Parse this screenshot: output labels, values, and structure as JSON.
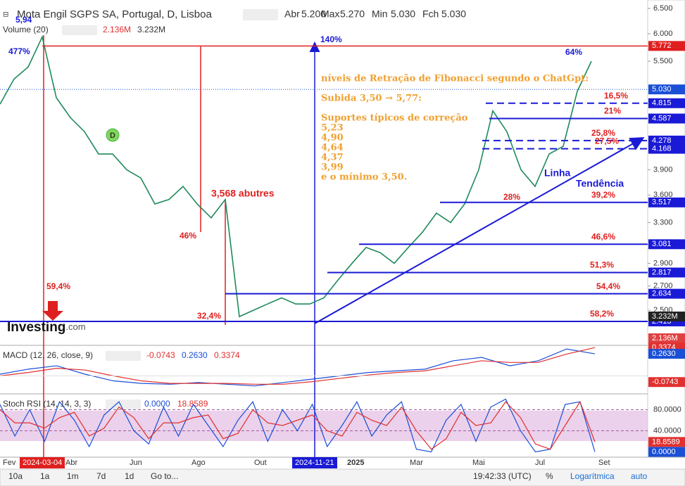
{
  "header": {
    "title": "Mota Engil SGPS SA, Portugal, D, Lisboa",
    "open_label": "Abr",
    "open": "5.200",
    "high_label": "Max",
    "high": "5.270",
    "low_label": "Min",
    "low": "5.030",
    "close_label": "Fch",
    "close": "5.030"
  },
  "volume": {
    "label": "Volume (20)",
    "last": "2.136M",
    "average": "3.232M"
  },
  "price_axis": {
    "log": true,
    "ylim": [
      2.242,
      6.676
    ],
    "ticks": [
      {
        "value": 6.5,
        "label": "6.500"
      },
      {
        "value": 6,
        "label": "6.000"
      },
      {
        "value": 5.5,
        "label": "5.500"
      },
      {
        "value": 3.9,
        "label": "3.900"
      },
      {
        "value": 3.6,
        "label": "3.600"
      },
      {
        "value": 3.3,
        "label": "3.300"
      },
      {
        "value": 2.9,
        "label": "2.900"
      },
      {
        "value": 2.7,
        "label": "2.700"
      },
      {
        "value": 2.5,
        "label": "2.500"
      }
    ]
  },
  "price": {
    "values": [
      4.8,
      5.2,
      5.4,
      5.94,
      4.9,
      4.6,
      4.4,
      4.1,
      4.1,
      3.9,
      3.8,
      3.5,
      3.55,
      3.7,
      3.5,
      3.35,
      3.55,
      2.45,
      2.5,
      2.55,
      2.6,
      2.55,
      2.55,
      2.6,
      2.75,
      2.9,
      3.05,
      3.0,
      2.9,
      3.05,
      3.2,
      3.4,
      3.3,
      3.5,
      3.9,
      4.7,
      4.4,
      3.9,
      3.7,
      4.1,
      4.2,
      5.0,
      5.5
    ]
  },
  "high_line": 5.772,
  "current": {
    "value": 5.03,
    "label": "5.030"
  },
  "levels": [
    {
      "price": 4.815,
      "pct": "16,5%",
      "dashed": true
    },
    {
      "price": 4.587,
      "pct": "21%",
      "dashed": false
    },
    {
      "price": 4.278,
      "pct": "25,8%",
      "dashed": true
    },
    {
      "price": 4.168,
      "pct": "27,5%",
      "dashed": true
    },
    {
      "price": 3.517,
      "pct": "39,2%",
      "dashed": false
    },
    {
      "price": 3.081,
      "pct": "46,6%",
      "dashed": false
    },
    {
      "price": 2.817,
      "pct": "51,3%",
      "dashed": false
    },
    {
      "price": 2.634,
      "pct": "54,4%",
      "dashed": false
    },
    {
      "price": 2.413,
      "pct": "58,2%",
      "dashed": false
    }
  ],
  "annotations": {
    "peak": "5,94",
    "rise1": "477%",
    "drop1": "59,4%",
    "drop2": "46%",
    "vultures": "3,568 abutres",
    "drop3": "32,4%",
    "rise2": "140%",
    "rise3": "64%",
    "drop4": "28%",
    "trend1": "Linha",
    "trend2": "Tendência",
    "marker": "D",
    "logo": "Investing",
    "logo_suffix": ".com"
  },
  "fib_text": [
    "níveis de Retração de Fibonacci segundo o ChatGpt:",
    "Subida 3,50 → 5,77:",
    "Suportes típicos de correção",
    "5,23",
    "4,90",
    "4,64",
    "4,37",
    "3,99",
    "e o mínimo 3,50."
  ],
  "macd": {
    "label": "MACD (12, 26, close, 9)",
    "histogram": -0.0743,
    "macd": {
      "value": 0.263,
      "label": "0.2630"
    },
    "signal": 0.3374,
    "ylim": [
      -0.215,
      0.364
    ],
    "macd_values": [
      0.02,
      0.08,
      0.12,
      0.02,
      -0.06,
      -0.09,
      -0.1,
      -0.08,
      -0.1,
      -0.12,
      -0.08,
      -0.04,
      0.0,
      0.04,
      0.06,
      0.08,
      0.18,
      0.22,
      0.12,
      0.18,
      0.32,
      0.263
    ],
    "signal_values": [
      0.0,
      0.04,
      0.09,
      0.07,
      0.0,
      -0.06,
      -0.09,
      -0.09,
      -0.09,
      -0.1,
      -0.1,
      -0.07,
      -0.03,
      0.01,
      0.04,
      0.06,
      0.12,
      0.18,
      0.16,
      0.16,
      0.26,
      0.3374
    ]
  },
  "stoch": {
    "label": "Stoch RSI (14, 14, 3, 3)",
    "k": {
      "value": 0,
      "label": "0.0000"
    },
    "d": 18.8589,
    "ylim": [
      -10,
      110
    ],
    "ticks": [
      {
        "value": 80,
        "label": "80.0000"
      },
      {
        "value": 40,
        "label": "40.0000"
      }
    ],
    "k_values": [
      90,
      30,
      80,
      20,
      95,
      60,
      10,
      70,
      95,
      40,
      15,
      85,
      30,
      90,
      50,
      10,
      60,
      95,
      20,
      80,
      40,
      90,
      10,
      50,
      95,
      30,
      70,
      95,
      5,
      0,
      60,
      90,
      20,
      85,
      100,
      40,
      0,
      5,
      90,
      95,
      0
    ],
    "d_values": [
      80,
      55,
      55,
      45,
      65,
      75,
      30,
      45,
      85,
      65,
      25,
      55,
      55,
      65,
      70,
      25,
      35,
      80,
      55,
      50,
      60,
      70,
      40,
      30,
      75,
      60,
      50,
      85,
      40,
      5,
      25,
      75,
      50,
      55,
      95,
      65,
      15,
      5,
      50,
      95,
      18.8589
    ]
  },
  "time_axis": [
    "Fev",
    "2024-03-04",
    "Abr",
    "Jun",
    "Ago",
    "Out",
    "2024-11-21",
    "2025",
    "Mar",
    "Mai",
    "Jul",
    "Set"
  ],
  "toolbar": {
    "ranges": [
      "10a",
      "1a",
      "1m",
      "7d",
      "1d"
    ],
    "goto": "Go to...",
    "clock": "19:42:33 (UTC)",
    "percent": "%",
    "log": "Logarítmica",
    "auto": "auto"
  }
}
